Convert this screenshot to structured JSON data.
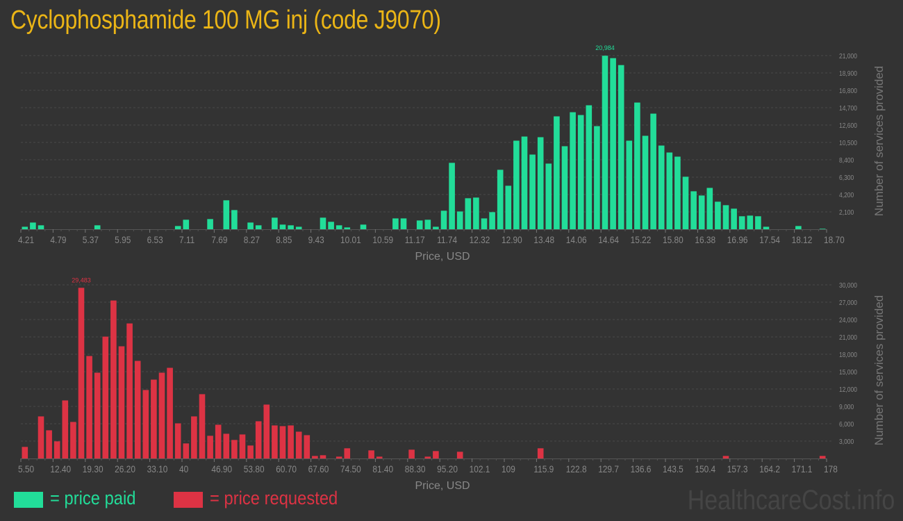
{
  "title": "Cyclophosphamide 100 MG inj (code J9070)",
  "colors": {
    "background": "#333333",
    "paid": "#22dd99",
    "requested": "#dd3344",
    "title": "#ebb516",
    "axis_text": "#888888",
    "grid": "#4a4a4a"
  },
  "legend": {
    "paid_label": "= price paid",
    "requested_label": "= price requested"
  },
  "watermark": "HealthcareCost.info",
  "chart_data": [
    {
      "type": "bar",
      "series": [
        {
          "name": "price paid",
          "color": "#22dd99",
          "values": [
            300,
            810,
            475,
            0,
            0,
            0,
            0,
            0,
            0,
            475,
            0,
            0,
            0,
            0,
            0,
            0,
            0,
            0,
            0,
            390,
            1150,
            0,
            0,
            1230,
            0,
            3500,
            2320,
            0,
            810,
            475,
            0,
            1400,
            560,
            475,
            300,
            0,
            0,
            1400,
            900,
            475,
            220,
            0,
            560,
            0,
            0,
            0,
            1310,
            1310,
            0,
            1060,
            1150,
            300,
            2240,
            8030,
            2150,
            3750,
            3830,
            1310,
            2070,
            7190,
            5260,
            10710,
            11210,
            9030,
            11130,
            7940,
            13650,
            10040,
            14150,
            13810,
            14990,
            12470,
            20984,
            20690,
            19850,
            10710,
            15320,
            11300,
            13980,
            10120,
            9280,
            8780,
            6350,
            4590,
            4080,
            5000,
            3330,
            2910,
            2490,
            1570,
            1650,
            1570,
            300,
            0,
            0,
            0,
            390,
            0,
            0,
            60
          ]
        }
      ],
      "x_range": [
        4.21,
        18.7
      ],
      "x_tick_labels": [
        "4.21",
        "4.79",
        "5.37",
        "5.95",
        "6.53",
        "7.11",
        "7.69",
        "8.27",
        "8.85",
        "9.43",
        "10.01",
        "10.59",
        "11.17",
        "11.74",
        "12.32",
        "12.90",
        "13.48",
        "14.06",
        "14.64",
        "15.22",
        "15.80",
        "16.38",
        "16.96",
        "17.54",
        "18.12",
        "18.70"
      ],
      "y_tick_labels": [
        "2,100",
        "4,200",
        "6,300",
        "8,400",
        "10,500",
        "12,600",
        "14,700",
        "16,800",
        "18,900",
        "21,000"
      ],
      "ylim": [
        0,
        21000
      ],
      "y_step": 2100,
      "xlabel": "Price, USD",
      "ylabel": "Number of services provided",
      "max_label": "20,984",
      "grid": true
    },
    {
      "type": "bar",
      "series": [
        {
          "name": "price requested",
          "color": "#dd3344",
          "values": [
            2000,
            0,
            7270,
            4870,
            2960,
            10030,
            6310,
            29483,
            17700,
            14820,
            21050,
            27290,
            19380,
            23330,
            16860,
            11830,
            13620,
            14820,
            15660,
            6070,
            2600,
            7270,
            11110,
            3920,
            5830,
            4270,
            3200,
            4150,
            2240,
            6430,
            9310,
            5710,
            5590,
            5710,
            4630,
            4030,
            440,
            560,
            0,
            320,
            1760,
            0,
            0,
            1400,
            320,
            0,
            0,
            0,
            1520,
            0,
            320,
            1280,
            0,
            0,
            1160,
            0,
            0,
            0,
            0,
            0,
            0,
            0,
            0,
            0,
            1760,
            0,
            0,
            0,
            0,
            0,
            0,
            0,
            0,
            0,
            0,
            0,
            0,
            0,
            0,
            0,
            0,
            0,
            0,
            0,
            0,
            0,
            0,
            440,
            0,
            0,
            0,
            0,
            0,
            0,
            0,
            0,
            0,
            0,
            0,
            440
          ]
        }
      ],
      "x_range": [
        5.5,
        178
      ],
      "x_tick_labels": [
        "5.50",
        "12.40",
        "19.30",
        "26.20",
        "33.10",
        "40",
        "46.90",
        "53.80",
        "60.70",
        "67.60",
        "74.50",
        "81.40",
        "88.30",
        "95.20",
        "102.1",
        "109",
        "115.9",
        "122.8",
        "129.7",
        "136.6",
        "143.5",
        "150.4",
        "157.3",
        "164.2",
        "171.1",
        "178"
      ],
      "y_tick_labels": [
        "3,000",
        "6,000",
        "9,000",
        "12,000",
        "15,000",
        "18,000",
        "21,000",
        "24,000",
        "27,000",
        "30,000"
      ],
      "ylim": [
        0,
        30000
      ],
      "y_step": 3000,
      "xlabel": "Price, USD",
      "ylabel": "Number of services provided",
      "max_label": "29,483",
      "grid": true
    }
  ]
}
